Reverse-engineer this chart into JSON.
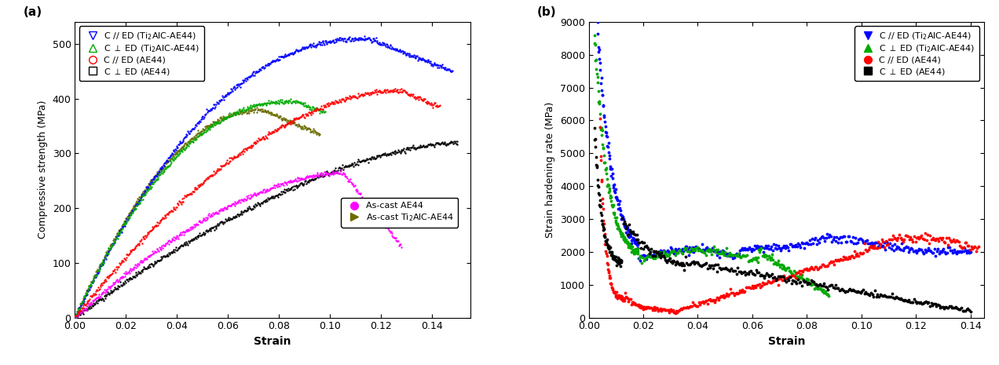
{
  "panel_a": {
    "xlabel": "Strain",
    "ylabel": "Compressive strength (MPa)",
    "xlim": [
      0.0,
      0.155
    ],
    "ylim": [
      0,
      540
    ],
    "xticks": [
      0.0,
      0.02,
      0.04,
      0.06,
      0.08,
      0.1,
      0.12,
      0.14
    ],
    "yticks": [
      0,
      100,
      200,
      300,
      400,
      500
    ]
  },
  "panel_b": {
    "xlabel": "Strain",
    "ylabel": "Strain hardening rate (MPa)",
    "xlim": [
      0.0,
      0.145
    ],
    "ylim": [
      0,
      9000
    ],
    "xticks": [
      0.0,
      0.02,
      0.04,
      0.06,
      0.08,
      0.1,
      0.12,
      0.14
    ],
    "yticks": [
      0,
      1000,
      2000,
      3000,
      4000,
      5000,
      6000,
      7000,
      8000,
      9000
    ]
  },
  "colors": {
    "blue": "#0000FF",
    "green": "#00AA00",
    "red": "#FF0000",
    "black": "#000000",
    "magenta": "#FF00FF",
    "olive": "#6B6B00"
  }
}
